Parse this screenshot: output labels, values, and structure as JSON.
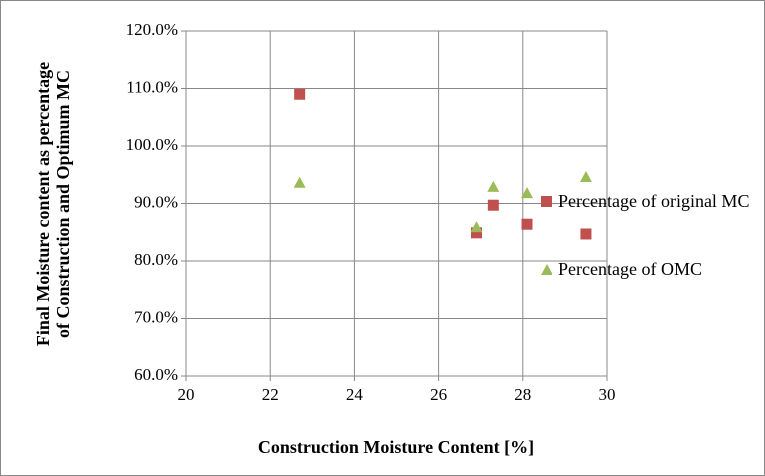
{
  "chart_data": {
    "type": "scatter",
    "x_label": "Construction Moisture Content [%]",
    "y_label": [
      "Final Moisture content as percentage",
      "of Construction and Optimum MC"
    ],
    "xlim": [
      20,
      30
    ],
    "xticks": [
      20,
      22,
      24,
      26,
      28,
      30
    ],
    "ylim": [
      60,
      120
    ],
    "yticks": [
      {
        "value": 60,
        "label": "60.0%"
      },
      {
        "value": 70,
        "label": "70.0%"
      },
      {
        "value": 80,
        "label": "80.0%"
      },
      {
        "value": 90,
        "label": "90.0%"
      },
      {
        "value": 100,
        "label": "100.0%"
      },
      {
        "value": 110,
        "label": "110.0%"
      },
      {
        "value": 120,
        "label": "120.0%"
      }
    ],
    "grid": true,
    "legend": "right",
    "series": [
      {
        "name": "Percentage of original MC",
        "color": "#c0504d",
        "marker": "square",
        "x": [
          22.7,
          26.9,
          27.3,
          28.1,
          29.5
        ],
        "values": [
          109.0,
          84.9,
          89.7,
          86.4,
          84.7
        ]
      },
      {
        "name": "Percentage of OMC",
        "color": "#9bbb59",
        "marker": "triangle",
        "x": [
          22.7,
          26.9,
          27.3,
          28.1,
          29.5
        ],
        "values": [
          93.6,
          85.9,
          92.9,
          91.8,
          94.6
        ]
      }
    ]
  }
}
